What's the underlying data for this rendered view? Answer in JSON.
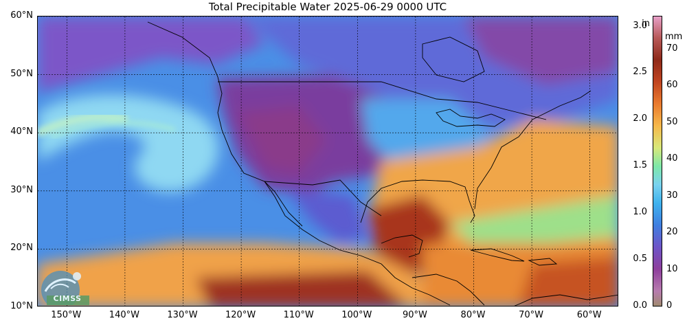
{
  "title": "Total Precipitable Water  2025-06-29 0000 UTC",
  "map": {
    "extent": {
      "lon_min": -155,
      "lon_max": -55,
      "lat_min": 10,
      "lat_max": 60
    },
    "lat_labels": [
      {
        "value": 60,
        "text": "60°N"
      },
      {
        "value": 50,
        "text": "50°N"
      },
      {
        "value": 40,
        "text": "40°N"
      },
      {
        "value": 30,
        "text": "30°N"
      },
      {
        "value": 20,
        "text": "20°N"
      },
      {
        "value": 10,
        "text": "10°N"
      }
    ],
    "lon_labels": [
      {
        "value": -150,
        "text": "150°W"
      },
      {
        "value": -140,
        "text": "140°W"
      },
      {
        "value": -130,
        "text": "130°W"
      },
      {
        "value": -120,
        "text": "120°W"
      },
      {
        "value": -110,
        "text": "110°W"
      },
      {
        "value": -100,
        "text": "100°W"
      },
      {
        "value": -90,
        "text": "90°W"
      },
      {
        "value": -80,
        "text": "80°W"
      },
      {
        "value": -70,
        "text": "70°W"
      },
      {
        "value": -60,
        "text": "60°W"
      }
    ],
    "gridlines": true
  },
  "colorbar": {
    "unit_in": "in",
    "unit_mm": "mm",
    "range_in": [
      0,
      3.1
    ],
    "range_mm": [
      0,
      78.74
    ],
    "inch_ticks": [
      {
        "value": 0.0,
        "text": "0.0"
      },
      {
        "value": 0.5,
        "text": "0.5"
      },
      {
        "value": 1.0,
        "text": "1.0"
      },
      {
        "value": 1.5,
        "text": "1.5"
      },
      {
        "value": 2.0,
        "text": "2.0"
      },
      {
        "value": 2.5,
        "text": "2.5"
      },
      {
        "value": 3.0,
        "text": "3.0"
      }
    ],
    "mm_ticks": [
      {
        "value": 0,
        "text": "0"
      },
      {
        "value": 10,
        "text": "10"
      },
      {
        "value": 20,
        "text": "20"
      },
      {
        "value": 30,
        "text": "30"
      },
      {
        "value": 40,
        "text": "40"
      },
      {
        "value": 50,
        "text": "50"
      },
      {
        "value": 60,
        "text": "60"
      },
      {
        "value": 70,
        "text": "70"
      }
    ],
    "stops": [
      {
        "mm": 0,
        "color": "#a08a70"
      },
      {
        "mm": 4,
        "color": "#b77cae"
      },
      {
        "mm": 10,
        "color": "#8e3f9c"
      },
      {
        "mm": 16,
        "color": "#6e55c8"
      },
      {
        "mm": 22,
        "color": "#3f7fe0"
      },
      {
        "mm": 28,
        "color": "#3fb3ee"
      },
      {
        "mm": 33,
        "color": "#7ad3ef"
      },
      {
        "mm": 38,
        "color": "#7ee8a8"
      },
      {
        "mm": 43,
        "color": "#d8e87a"
      },
      {
        "mm": 49,
        "color": "#f6b84a"
      },
      {
        "mm": 55,
        "color": "#e97a2e"
      },
      {
        "mm": 61,
        "color": "#c04420"
      },
      {
        "mm": 67,
        "color": "#8e2a1a"
      },
      {
        "mm": 73,
        "color": "#b85a5a"
      },
      {
        "mm": 78.74,
        "color": "#e7a0c8"
      }
    ]
  },
  "logo": {
    "text": "CIMSS",
    "icon": "cimss-logo-icon"
  }
}
